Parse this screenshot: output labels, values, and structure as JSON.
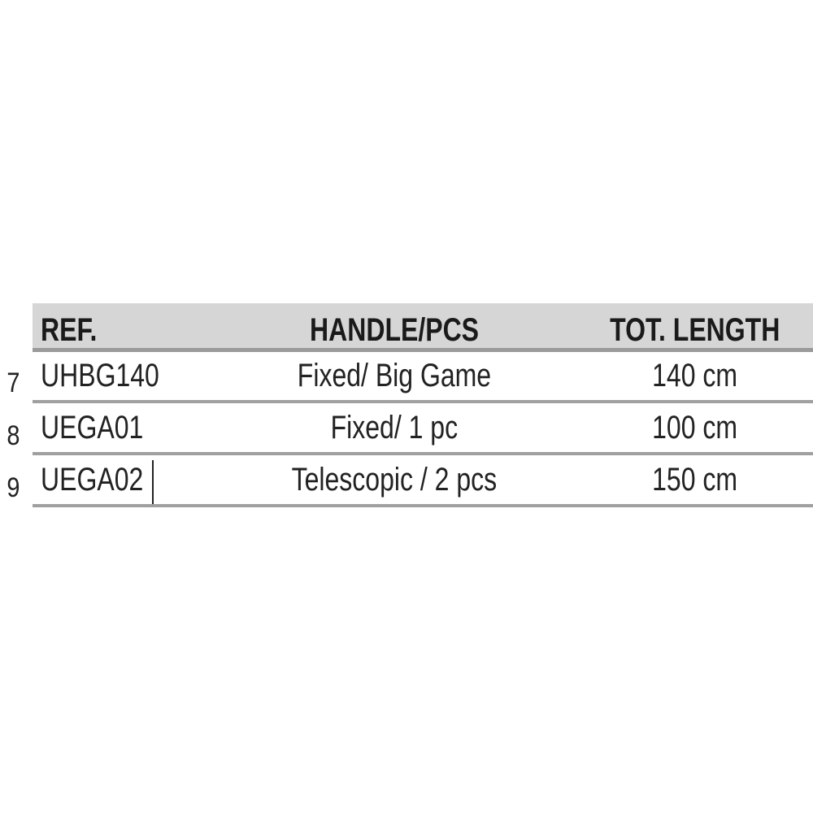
{
  "table": {
    "headers": [
      "REF.",
      "HANDLE/PCS",
      "TOT. LENGTH"
    ],
    "rows": [
      {
        "num": "7",
        "ref": "UHBG140",
        "handle": "Fixed/ Big Game",
        "length": "140 cm"
      },
      {
        "num": "8",
        "ref": "UEGA01",
        "handle": "Fixed/ 1 pc",
        "length": "100 cm"
      },
      {
        "num": "9",
        "ref": "UEGA02",
        "handle": "Telescopic / 2 pcs",
        "length": "150 cm"
      }
    ]
  },
  "colors": {
    "header_bg": "#d6d6d6",
    "rule": "#9a9a9a",
    "text": "#222222"
  }
}
